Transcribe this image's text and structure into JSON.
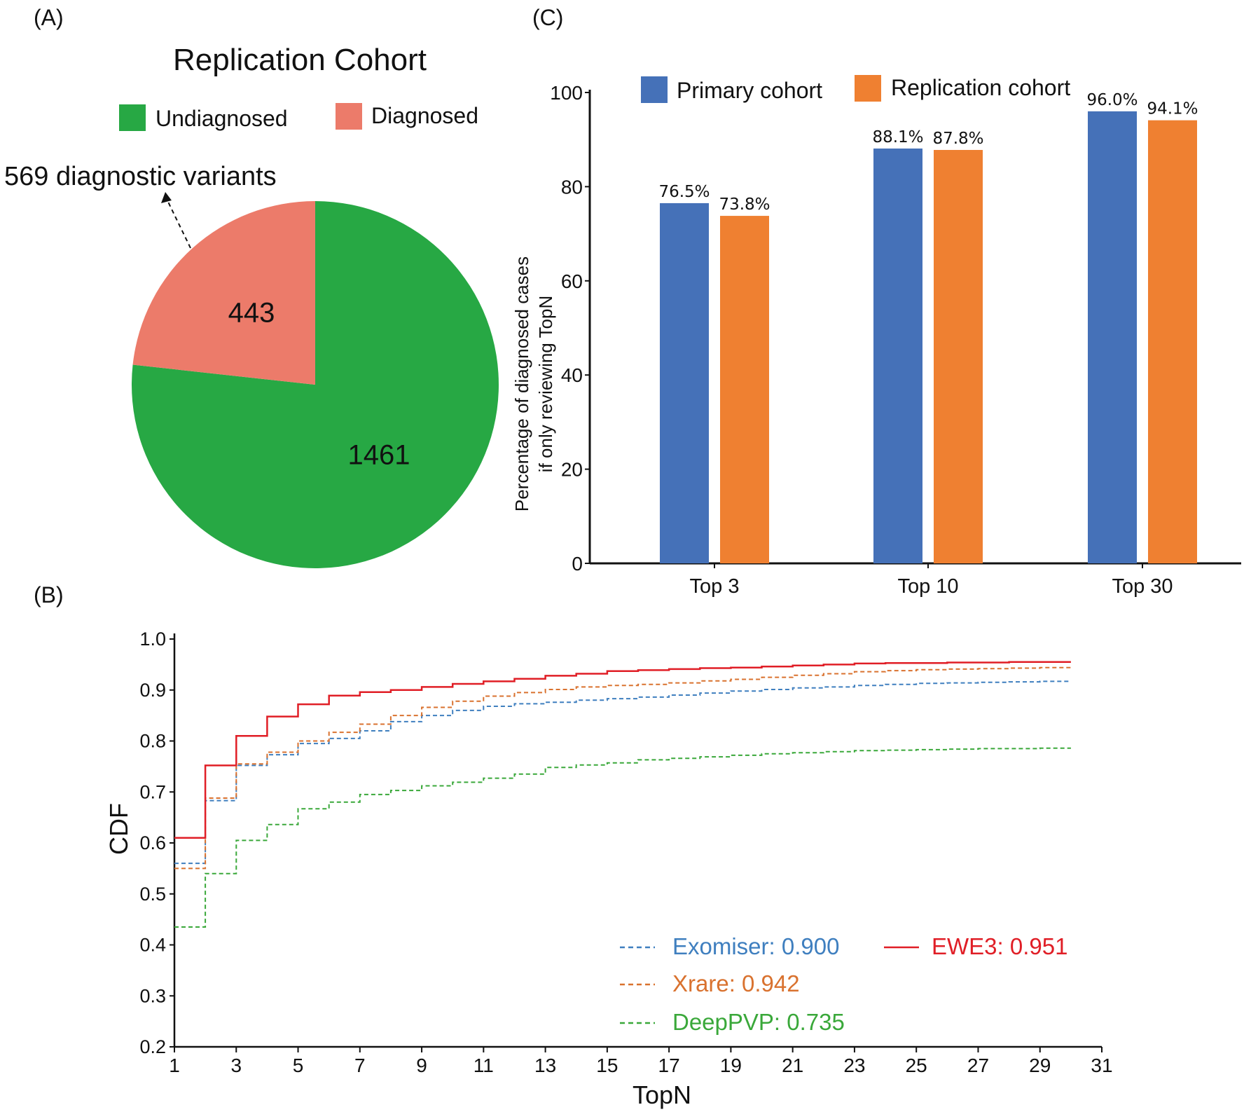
{
  "panels": {
    "a": "(A)",
    "b": "(B)",
    "c": "(C)"
  },
  "chart_data": [
    {
      "panel": "A",
      "type": "pie",
      "title": "Replication Cohort",
      "annotation": "569 diagnostic variants",
      "slices": [
        {
          "name": "Undiagnosed",
          "value": 1461,
          "color": "#27a844"
        },
        {
          "name": "Diagnosed",
          "value": 443,
          "color": "#ec7b6a"
        }
      ],
      "legend_placement": "top"
    },
    {
      "panel": "C",
      "type": "bar",
      "categories": [
        "Top 3",
        "Top 10",
        "Top 30"
      ],
      "ylabel": "Percentage of diagnosed cases",
      "ylabel2": "if only reviewing TopN",
      "ylim": [
        0,
        100
      ],
      "yticks": [
        0,
        20,
        40,
        60,
        80,
        100
      ],
      "legend_placement": "top",
      "series": [
        {
          "name": "Primary cohort",
          "color": "#4571b8",
          "values": [
            76.5,
            88.1,
            96.0
          ],
          "labels": [
            "76.5%",
            "88.1%",
            "96.0%"
          ]
        },
        {
          "name": "Replication cohort",
          "color": "#ef8031",
          "values": [
            73.8,
            87.8,
            94.1
          ],
          "labels": [
            "73.8%",
            "87.8%",
            "94.1%"
          ]
        }
      ]
    },
    {
      "panel": "B",
      "type": "line",
      "xlabel": "TopN",
      "ylabel": "CDF",
      "xlim": [
        1,
        31
      ],
      "ylim": [
        0.2,
        1.0
      ],
      "xticks": [
        1,
        3,
        5,
        7,
        9,
        11,
        13,
        15,
        17,
        19,
        21,
        23,
        25,
        27,
        29,
        31
      ],
      "yticks": [
        "0.2",
        "0.3",
        "0.4",
        "0.5",
        "0.6",
        "0.7",
        "0.8",
        "0.9",
        "1.0"
      ],
      "legend_placement": "bottom-right",
      "x": [
        1,
        2,
        3,
        4,
        5,
        6,
        7,
        8,
        9,
        10,
        11,
        12,
        13,
        14,
        15,
        16,
        17,
        18,
        19,
        20,
        21,
        22,
        23,
        24,
        25,
        26,
        27,
        28,
        29,
        30
      ],
      "series": [
        {
          "name": "Exomiser",
          "label": "Exomiser: 0.900",
          "color": "#3f7fbf",
          "dashed": true,
          "values": [
            0.56,
            0.683,
            0.752,
            0.773,
            0.795,
            0.805,
            0.82,
            0.838,
            0.85,
            0.86,
            0.868,
            0.873,
            0.876,
            0.88,
            0.883,
            0.886,
            0.89,
            0.894,
            0.898,
            0.901,
            0.904,
            0.906,
            0.909,
            0.911,
            0.913,
            0.914,
            0.915,
            0.916,
            0.917,
            0.917
          ]
        },
        {
          "name": "Xrare",
          "label": "Xrare: 0.942",
          "color": "#d9722f",
          "dashed": true,
          "values": [
            0.55,
            0.688,
            0.755,
            0.778,
            0.8,
            0.817,
            0.833,
            0.85,
            0.866,
            0.878,
            0.888,
            0.895,
            0.901,
            0.906,
            0.909,
            0.911,
            0.914,
            0.918,
            0.921,
            0.925,
            0.929,
            0.932,
            0.936,
            0.938,
            0.94,
            0.941,
            0.942,
            0.943,
            0.944,
            0.945
          ]
        },
        {
          "name": "DeepPVP",
          "label": "DeepPVP: 0.735",
          "color": "#3aa83a",
          "dashed": true,
          "values": [
            0.435,
            0.54,
            0.605,
            0.636,
            0.667,
            0.68,
            0.695,
            0.703,
            0.712,
            0.719,
            0.727,
            0.735,
            0.748,
            0.753,
            0.757,
            0.763,
            0.766,
            0.769,
            0.772,
            0.775,
            0.777,
            0.779,
            0.781,
            0.782,
            0.783,
            0.784,
            0.785,
            0.785,
            0.786,
            0.786
          ]
        },
        {
          "name": "EWE3",
          "label": "EWE3: 0.951",
          "color": "#e01e26",
          "dashed": false,
          "values": [
            0.61,
            0.752,
            0.81,
            0.848,
            0.872,
            0.889,
            0.896,
            0.9,
            0.906,
            0.912,
            0.917,
            0.922,
            0.928,
            0.932,
            0.937,
            0.939,
            0.941,
            0.943,
            0.944,
            0.946,
            0.948,
            0.95,
            0.952,
            0.953,
            0.953,
            0.954,
            0.954,
            0.955,
            0.955,
            0.955
          ]
        }
      ]
    }
  ]
}
